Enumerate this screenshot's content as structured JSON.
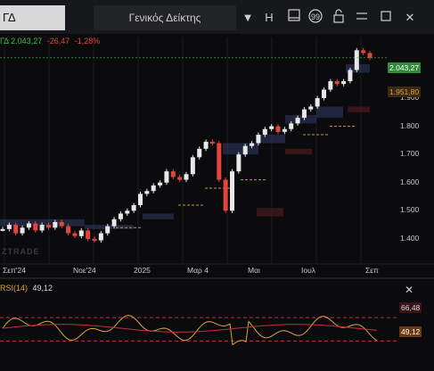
{
  "toolbar": {
    "symbol": "ΓΔ",
    "index_name": "Γενικός Δείκτης",
    "h_label": "H",
    "icons": [
      "chevron-down-icon",
      "panel-icon",
      "quote-icon",
      "lock-icon",
      "menu-icon",
      "maximize-icon",
      "close-icon"
    ]
  },
  "quote": {
    "symbol": "ΓΔ",
    "last": "2.043,27",
    "change": "-26,47",
    "change_pct": "-1,28%"
  },
  "price_tags": {
    "last": "2.043,27",
    "level": "1.951,80"
  },
  "watermark": "ZTRADE",
  "rsi": {
    "label": "RSI(14)",
    "value": "49,12",
    "upper": "66,48",
    "tag_value": "49,12"
  },
  "colors": {
    "up": "#3fc04a",
    "down": "#e2453c",
    "rsi": "#e0a040",
    "accent_tag": "#d88a2a",
    "zone": "#2f3c66"
  },
  "chart_data": {
    "type": "line",
    "y_ticks": [
      "2.000",
      "1.900",
      "1.800",
      "1.700",
      "1.600",
      "1.500",
      "1.400"
    ],
    "x_ticks": [
      "Σεπ'24",
      "Νοε'24",
      "2025",
      "Μαρ 4",
      "Μαι",
      "Ιουλ",
      "Σεπ"
    ],
    "ylim": [
      1330,
      2090
    ],
    "series": [
      {
        "values": [
          1435,
          1450,
          1420,
          1440,
          1455,
          1430,
          1450,
          1440,
          1460,
          1445,
          1420,
          1410,
          1430,
          1400,
          1395,
          1420,
          1445,
          1470,
          1490,
          1500,
          1520,
          1560,
          1570,
          1590,
          1600,
          1640,
          1620,
          1610,
          1630,
          1690,
          1720,
          1745,
          1740,
          1610,
          1500,
          1640,
          1700,
          1730,
          1740,
          1770,
          1790,
          1800,
          1780,
          1790,
          1810,
          1830,
          1860,
          1870,
          1900,
          1930,
          1960,
          1950,
          1960,
          2000,
          2070,
          2060,
          2043
        ]
      }
    ]
  },
  "rsi_chart": {
    "ylim": [
      0,
      100
    ],
    "upper": 66.48,
    "lower": 30
  }
}
